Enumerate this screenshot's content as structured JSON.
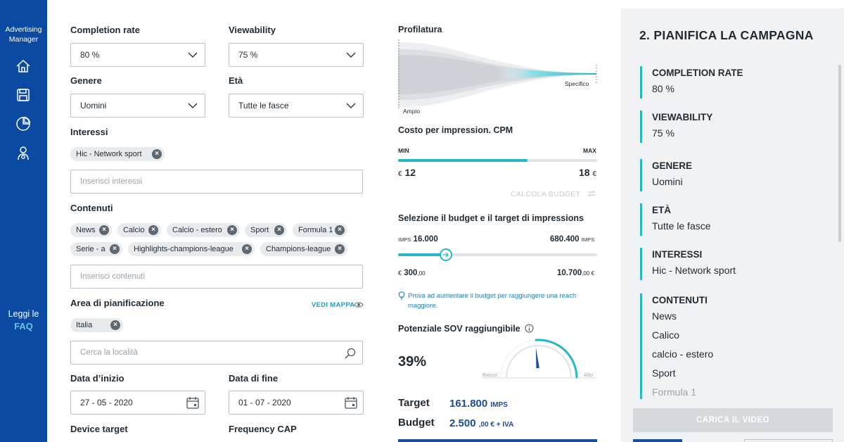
{
  "nav": {
    "brand": "Advertising Manager",
    "icons": [
      "home-icon",
      "save-icon",
      "pie-chart-icon",
      "user-settings-icon"
    ],
    "faq_prefix": "Leggi le",
    "faq_link": "FAQ"
  },
  "form": {
    "completion_rate": {
      "label": "Completion rate",
      "value": "80 %"
    },
    "viewability": {
      "label": "Viewability",
      "value": "75 %"
    },
    "genere": {
      "label": "Genere",
      "value": "Uomini"
    },
    "eta": {
      "label": "Età",
      "value": "Tutte le fasce"
    },
    "interessi": {
      "label": "Interessi",
      "chips": [
        "Hic - Network sport"
      ],
      "placeholder": "Inserisci interessi"
    },
    "contenuti": {
      "label": "Contenuti",
      "chips": [
        "News",
        "Calcio",
        "Calcio - estero",
        "Sport",
        "Formula 1",
        "Serie - a",
        "Highlights-champions-league",
        "Champions-league"
      ],
      "placeholder": "Inserisci contenuti"
    },
    "area": {
      "label": "Area di pianificazione",
      "map_link": "VEDI MAPPA",
      "chips": [
        "Italia"
      ],
      "placeholder": "Cerca la località"
    },
    "data_inizio": {
      "label": "Data d’inizio",
      "value": "27 - 05 - 2020"
    },
    "data_fine": {
      "label": "Data di fine",
      "value": "01 - 07 - 2020"
    },
    "device_target": {
      "label": "Device target"
    },
    "frequency_cap": {
      "label": "Frequency CAP"
    }
  },
  "profilatura": {
    "label": "Profilatura",
    "left": "Ampio",
    "right": "Specifico"
  },
  "cpm": {
    "label": "Costo per impression. CPM",
    "min_label": "MIN",
    "max_label": "MAX",
    "min_value": "12",
    "max_value": "18",
    "currency": "€",
    "fill_fraction": 0.65,
    "calc_link": "CALCOLA BUDGET"
  },
  "budget": {
    "label": "Selezione il budget e il target di impressions",
    "imps_prefix": "IMPS",
    "imps_suffix": "IMPS",
    "imps_min": "16.000",
    "imps_max": "680.400",
    "euro_min_prefix": "€",
    "euro_min": "300",
    "euro_min_dec": ",00",
    "euro_max": "10.700",
    "euro_max_suffix": ",00 €",
    "slider_fraction": 0.24,
    "hint": "Prova ad aumentare il budget per raggiungere una reach maggiore."
  },
  "sov": {
    "label": "Potenziale SOV raggiungibile",
    "value": "39%",
    "gauge_low": "Basso",
    "gauge_high": "Alto",
    "gauge_fraction": 0.39
  },
  "totals": {
    "target_label": "Target",
    "target_value": "161.800",
    "target_unit": "IMPS",
    "budget_label": "Budget",
    "budget_value": "2.500",
    "budget_unit": ",00 € + IVA"
  },
  "summary": {
    "title": "2. PIANIFICA LA CAMPAGNA",
    "items": [
      {
        "head": "COMPLETION RATE",
        "values": [
          "80 %"
        ]
      },
      {
        "head": "VIEWABILITY",
        "values": [
          "75 %"
        ]
      },
      {
        "head": "GENERE",
        "values": [
          "Uomini"
        ]
      },
      {
        "head": "ETÀ",
        "values": [
          "Tutte le fasce"
        ]
      },
      {
        "head": "INTERESSI",
        "values": [
          "Hic - Network sport"
        ]
      },
      {
        "head": "CONTENUTI",
        "values": [
          "News",
          "Calico",
          "calcio - estero",
          "Sport",
          "Formula 1"
        ]
      }
    ],
    "video_button": "CARICA IL VIDEO"
  },
  "colors": {
    "nav": "#0b4aa2",
    "accent": "#25b6c9",
    "dark_blue": "#1a4d96"
  }
}
